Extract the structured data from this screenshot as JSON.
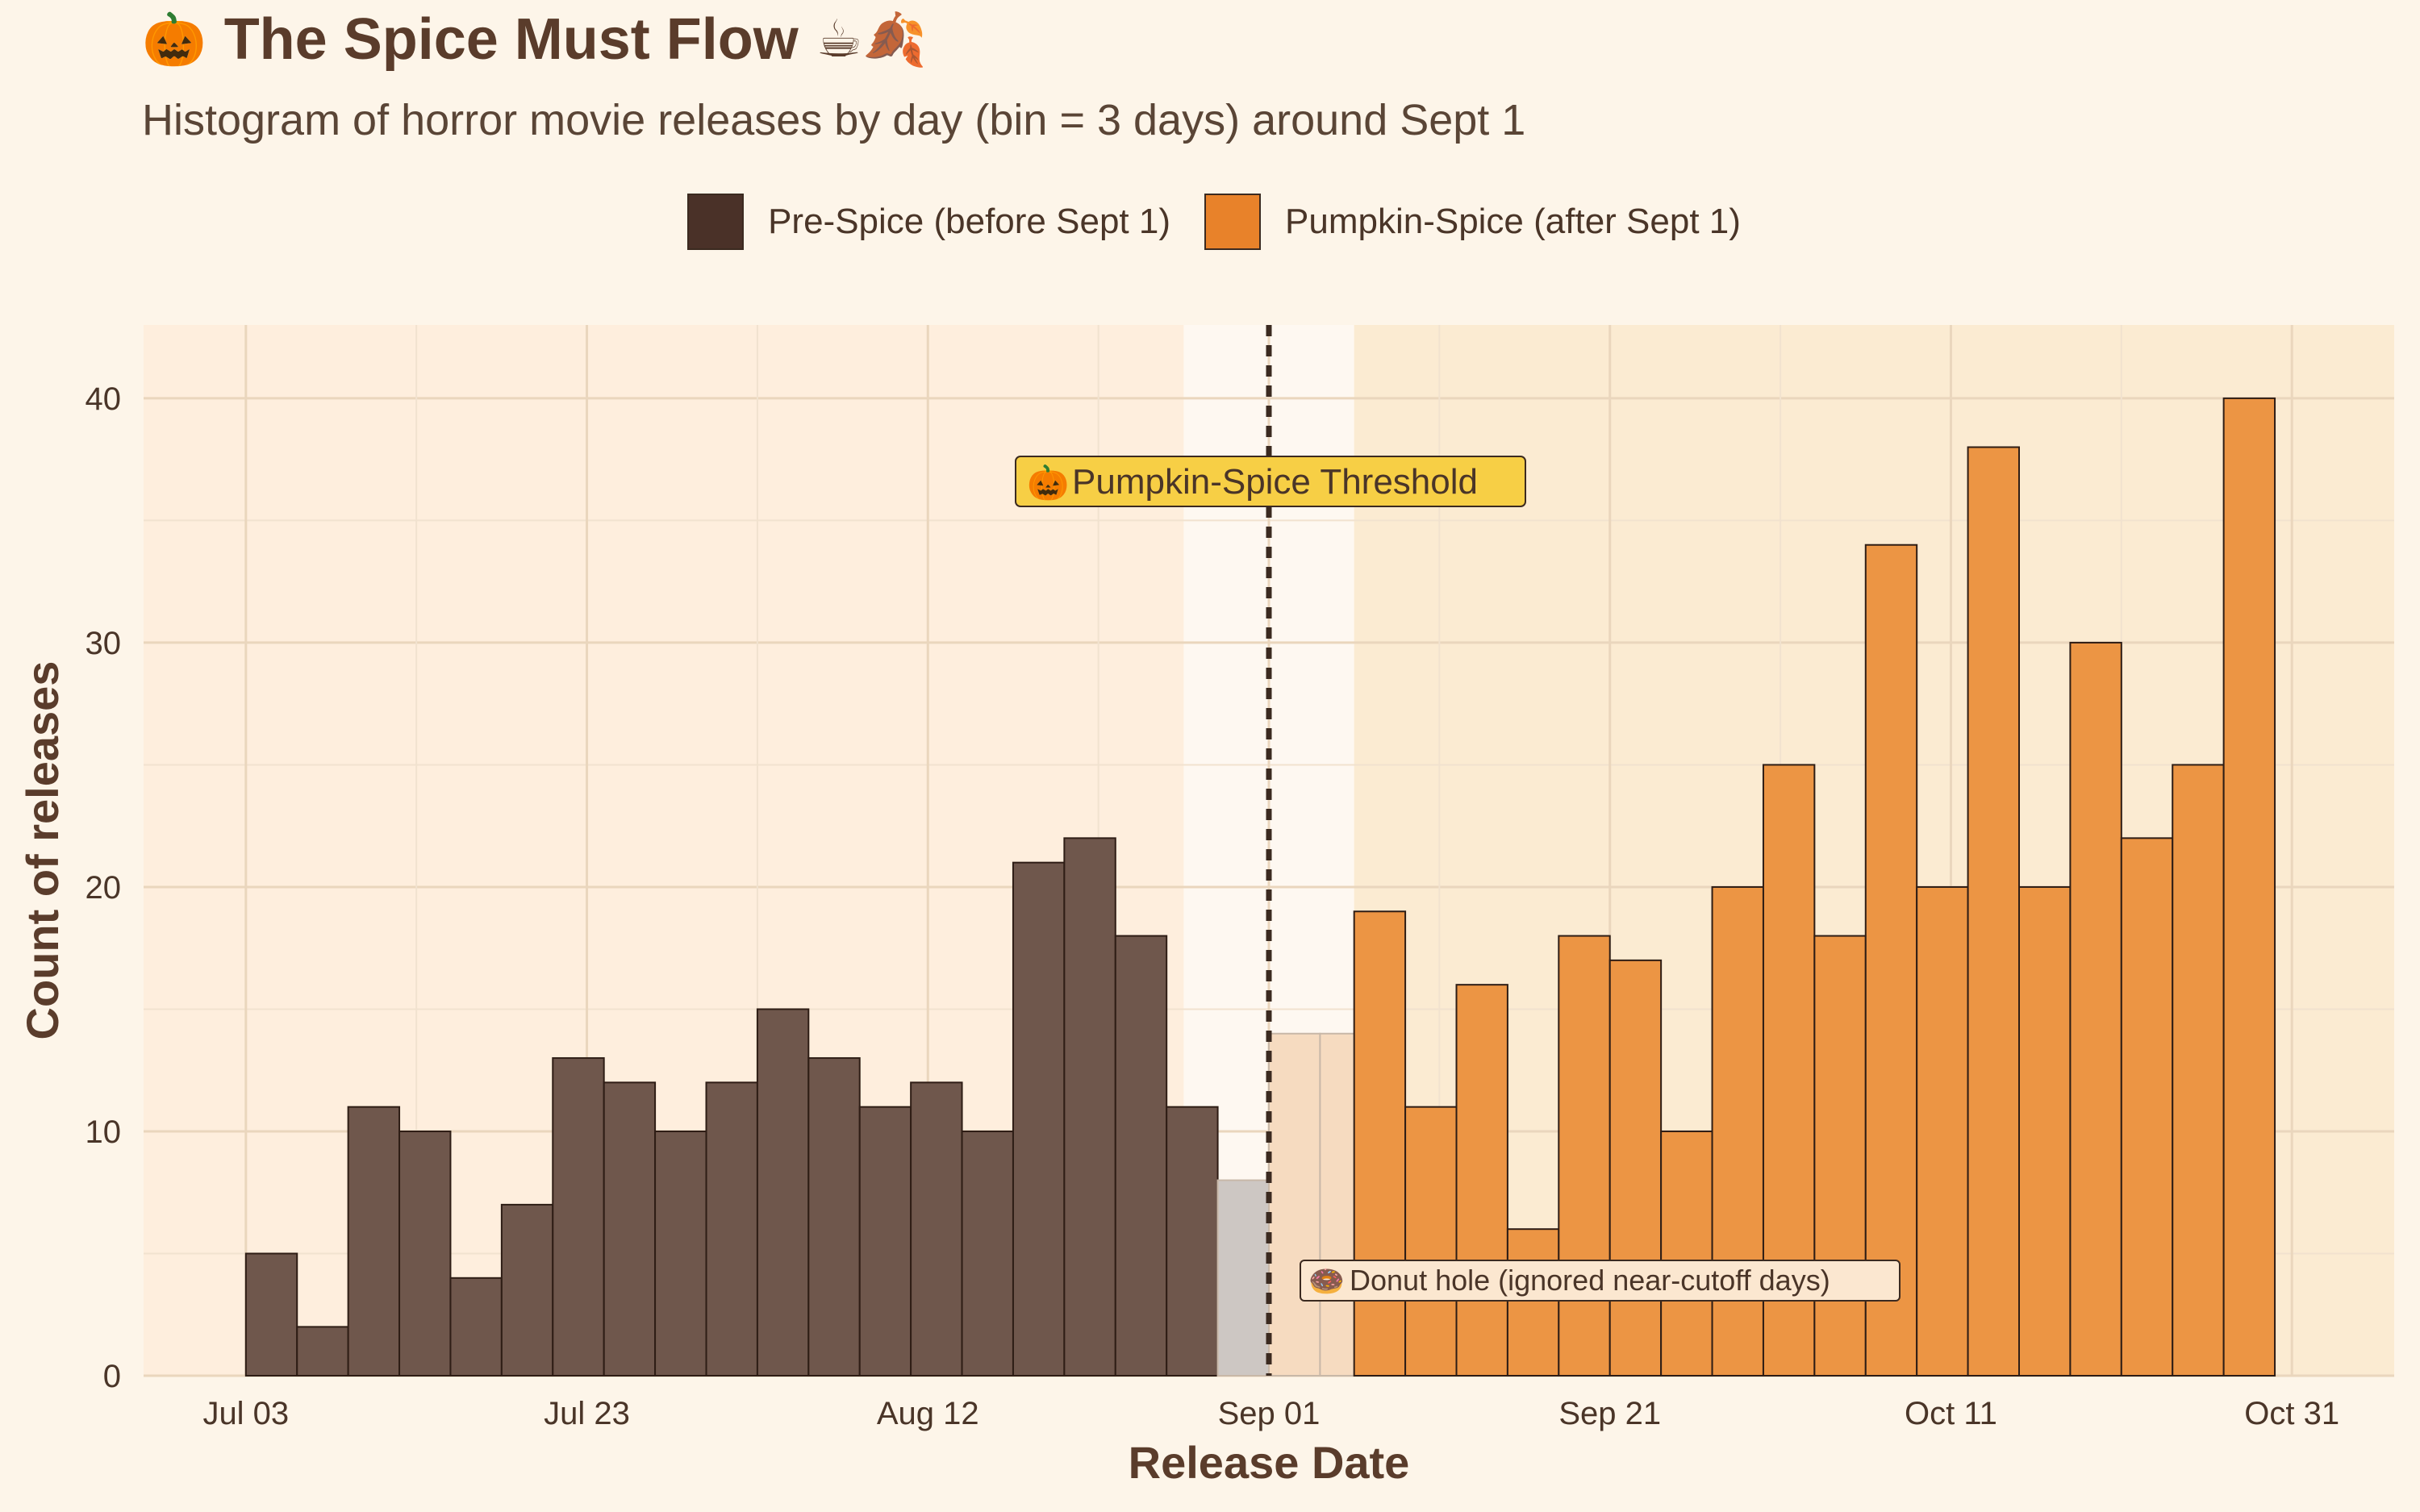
{
  "title": "The Spice Must Flow",
  "subtitle": "Histogram of horror movie releases by day (bin = 3 days) around Sept 1",
  "title_icons": {
    "left": "jack-o-lantern-icon",
    "right": [
      "coffee-cup-icon",
      "autumn-leaves-icon"
    ]
  },
  "legend": {
    "position": "top-center",
    "items": [
      {
        "label": "Pre-Spice (before Sept 1)",
        "color": "#4a3128"
      },
      {
        "label": "Pumpkin-Spice (after Sept 1)",
        "color": "#e8822a"
      }
    ]
  },
  "annotations": {
    "threshold_label": "Pumpkin-Spice Threshold",
    "threshold_icon": "jack-o-lantern-icon",
    "donut_label": "Donut hole (ignored near-cutoff days)",
    "donut_icon": "donut-icon"
  },
  "colors": {
    "pre": "#6f574c",
    "post": "#ec9544",
    "excluded_pre": "#cdc7c3",
    "excluded_post": "#f6dbc0",
    "panel_pre": "#feeedd",
    "panel_post": "#fbebd2",
    "donut_band": "#fef8f1",
    "threshold_box": "#f7cf45",
    "text": "#4a3528"
  },
  "chart_data": {
    "type": "bar",
    "subtype": "histogram",
    "bin_width_days": 3,
    "xlabel": "Release Date",
    "ylabel": "Count of releases",
    "x_ticks": [
      "Jul 03",
      "Jul 23",
      "Aug 12",
      "Sep 01",
      "Sep 21",
      "Oct 11",
      "Oct 31"
    ],
    "y_ticks": [
      0,
      10,
      20,
      30,
      40
    ],
    "xlim": [
      "2023-06-27",
      "2023-11-06"
    ],
    "ylim": [
      0,
      43
    ],
    "grid": true,
    "threshold_date": "2023-09-01",
    "donut_hole": [
      "2023-08-27",
      "2023-09-06"
    ],
    "series": [
      {
        "name": "Pre-Spice (before Sept 1)",
        "bins": [
          {
            "start": "2023-07-03",
            "value": 5
          },
          {
            "start": "2023-07-06",
            "value": 2
          },
          {
            "start": "2023-07-09",
            "value": 11
          },
          {
            "start": "2023-07-12",
            "value": 10
          },
          {
            "start": "2023-07-15",
            "value": 4
          },
          {
            "start": "2023-07-18",
            "value": 7
          },
          {
            "start": "2023-07-21",
            "value": 13
          },
          {
            "start": "2023-07-24",
            "value": 12
          },
          {
            "start": "2023-07-27",
            "value": 10
          },
          {
            "start": "2023-07-30",
            "value": 12
          },
          {
            "start": "2023-08-02",
            "value": 15
          },
          {
            "start": "2023-08-05",
            "value": 13
          },
          {
            "start": "2023-08-08",
            "value": 11
          },
          {
            "start": "2023-08-11",
            "value": 12
          },
          {
            "start": "2023-08-14",
            "value": 10
          },
          {
            "start": "2023-08-17",
            "value": 21
          },
          {
            "start": "2023-08-20",
            "value": 22
          },
          {
            "start": "2023-08-23",
            "value": 18
          },
          {
            "start": "2023-08-26",
            "value": 11
          },
          {
            "start": "2023-08-29",
            "value": 8
          }
        ]
      },
      {
        "name": "Pumpkin-Spice (after Sept 1)",
        "bins": [
          {
            "start": "2023-09-01",
            "value": 14
          },
          {
            "start": "2023-09-04",
            "value": 14
          },
          {
            "start": "2023-09-06",
            "value": 19
          },
          {
            "start": "2023-09-09",
            "value": 11
          },
          {
            "start": "2023-09-12",
            "value": 16
          },
          {
            "start": "2023-09-15",
            "value": 6
          },
          {
            "start": "2023-09-18",
            "value": 18
          },
          {
            "start": "2023-09-21",
            "value": 17
          },
          {
            "start": "2023-09-24",
            "value": 10
          },
          {
            "start": "2023-09-27",
            "value": 20
          },
          {
            "start": "2023-09-30",
            "value": 25
          },
          {
            "start": "2023-10-03",
            "value": 18
          },
          {
            "start": "2023-10-06",
            "value": 34
          },
          {
            "start": "2023-10-09",
            "value": 20
          },
          {
            "start": "2023-10-12",
            "value": 38
          },
          {
            "start": "2023-10-15",
            "value": 20
          },
          {
            "start": "2023-10-18",
            "value": 30
          },
          {
            "start": "2023-10-21",
            "value": 22
          },
          {
            "start": "2023-10-24",
            "value": 25
          },
          {
            "start": "2023-10-27",
            "value": 40
          }
        ]
      }
    ]
  }
}
